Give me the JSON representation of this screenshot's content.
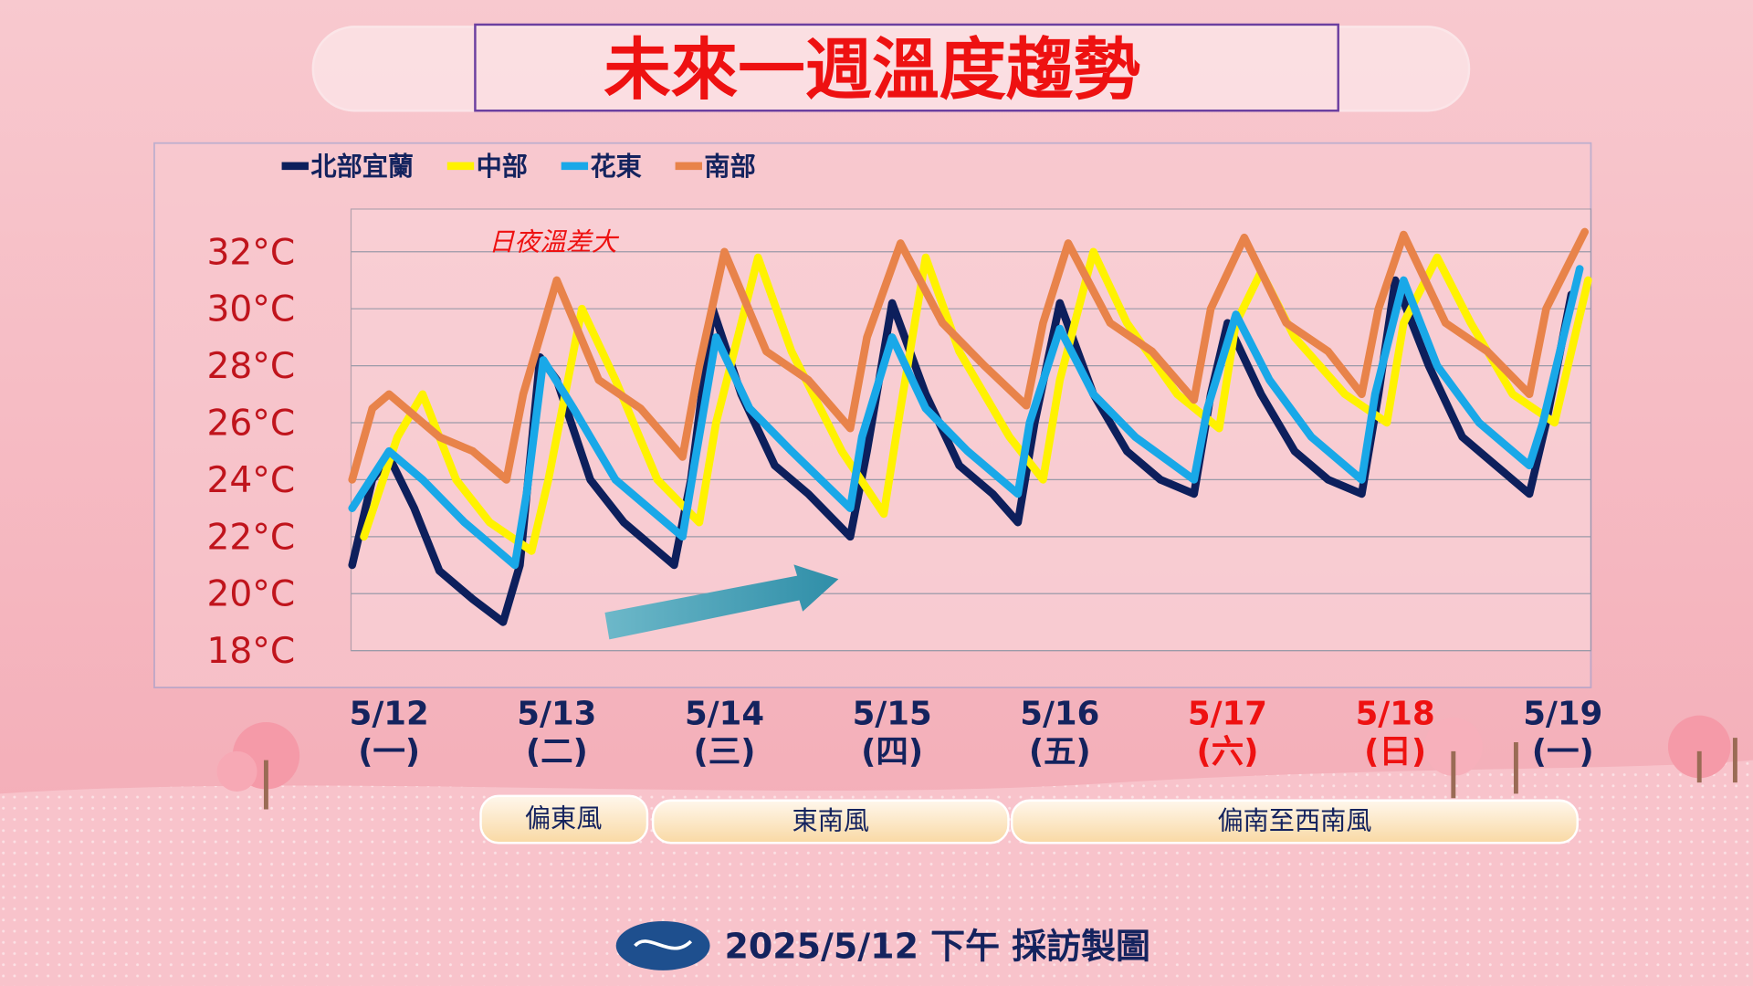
{
  "chart_data": {
    "type": "line",
    "title": "未來一週溫度趨勢",
    "annotation": "日夜溫差大",
    "xlim": [
      -0.227,
      7.167
    ],
    "ylim": [
      18,
      33.5
    ],
    "xticks": [
      {
        "value": 0,
        "label": "5/12"
      },
      {
        "value": 1,
        "label": "5/13"
      },
      {
        "value": 2,
        "label": "5/14"
      },
      {
        "value": 3,
        "label": "5/15"
      },
      {
        "value": 4,
        "label": "5/16"
      },
      {
        "value": 5,
        "label": "5/17"
      },
      {
        "value": 6,
        "label": "5/18"
      },
      {
        "value": 7,
        "label": "5/19"
      }
    ],
    "weekdays": [
      "(一)",
      "(二)",
      "(三)",
      "(四)",
      "(五)",
      "(六)",
      "(日)",
      "(一)"
    ],
    "xtick_colors": [
      "#14235e",
      "#14235e",
      "#14235e",
      "#14235e",
      "#14235e",
      "#ee1111",
      "#ee1111",
      "#14235e"
    ],
    "yticks": [
      {
        "value": 18,
        "label": "18°C"
      },
      {
        "value": 20,
        "label": "20°C"
      },
      {
        "value": 22,
        "label": "22°C"
      },
      {
        "value": 24,
        "label": "24°C"
      },
      {
        "value": 26,
        "label": "26°C"
      },
      {
        "value": 28,
        "label": "28°C"
      },
      {
        "value": 30,
        "label": "30°C"
      },
      {
        "value": 32,
        "label": "32°C"
      }
    ],
    "grid": true,
    "legend": "top-left",
    "series": [
      {
        "name": "北部宜蘭",
        "color": "#0d1f5c",
        "x": [
          -0.22,
          -0.1,
          0,
          0.15,
          0.3,
          0.5,
          0.68,
          0.78,
          0.9,
          1.0,
          1.2,
          1.4,
          1.7,
          1.8,
          1.93,
          2.1,
          2.3,
          2.5,
          2.75,
          2.85,
          3.0,
          3.2,
          3.4,
          3.6,
          3.75,
          3.85,
          4.0,
          4.2,
          4.4,
          4.6,
          4.8,
          4.9,
          5.0,
          5.2,
          5.4,
          5.6,
          5.8,
          5.9,
          6.0,
          6.2,
          6.4,
          6.6,
          6.8,
          6.9,
          7.05
        ],
        "values": [
          21,
          24,
          24.8,
          23,
          20.8,
          19.8,
          19,
          21,
          28.3,
          27.5,
          24,
          22.5,
          21,
          24,
          30,
          27,
          24.5,
          23.5,
          22,
          25,
          30.2,
          27,
          24.5,
          23.5,
          22.5,
          26,
          30.2,
          27,
          25,
          24,
          23.5,
          27,
          29.5,
          27,
          25,
          24,
          23.5,
          27,
          31,
          28,
          25.5,
          24.5,
          23.5,
          26,
          30.5
        ]
      },
      {
        "name": "中部",
        "color": "#fff200",
        "x": [
          -0.15,
          0.05,
          0.2,
          0.4,
          0.6,
          0.85,
          0.95,
          1.15,
          1.35,
          1.6,
          1.85,
          1.95,
          2.2,
          2.4,
          2.7,
          2.95,
          3.05,
          3.2,
          3.4,
          3.7,
          3.9,
          4.0,
          4.2,
          4.4,
          4.7,
          4.95,
          5.05,
          5.2,
          5.4,
          5.7,
          5.95,
          6.05,
          6.25,
          6.45,
          6.7,
          6.95,
          7.15
        ],
        "values": [
          22,
          25.5,
          27,
          24,
          22.5,
          21.5,
          24,
          30,
          27.5,
          24,
          22.5,
          26,
          31.8,
          28.5,
          25,
          22.8,
          26.5,
          31.8,
          28.5,
          25.5,
          24,
          27.5,
          32,
          29.5,
          27,
          25.8,
          29.5,
          31.3,
          29,
          27,
          26,
          29.5,
          31.8,
          29.5,
          27,
          26,
          31
        ]
      },
      {
        "name": "花東",
        "color": "#19a8e8",
        "x": [
          -0.22,
          0,
          0.2,
          0.45,
          0.75,
          0.82,
          0.92,
          1.1,
          1.35,
          1.75,
          1.82,
          1.95,
          2.15,
          2.4,
          2.75,
          2.82,
          3.0,
          3.2,
          3.45,
          3.75,
          3.82,
          4.0,
          4.2,
          4.45,
          4.8,
          4.88,
          5.05,
          5.25,
          5.5,
          5.8,
          5.88,
          6.05,
          6.25,
          6.5,
          6.8,
          6.88,
          7.1
        ],
        "values": [
          23,
          25,
          24,
          22.5,
          21,
          23.5,
          28.2,
          26.5,
          24,
          22,
          24.5,
          29,
          26.5,
          25,
          23,
          25.5,
          29,
          26.5,
          25,
          23.5,
          26,
          29.3,
          27,
          25.5,
          24,
          26.5,
          29.8,
          27.5,
          25.5,
          24,
          27,
          31,
          28,
          26,
          24.5,
          26,
          31.4
        ]
      },
      {
        "name": "南部",
        "color": "#e8834a",
        "x": [
          -0.22,
          -0.1,
          0,
          0.3,
          0.5,
          0.7,
          0.8,
          1.0,
          1.25,
          1.5,
          1.75,
          1.85,
          2.0,
          2.25,
          2.5,
          2.75,
          2.85,
          3.05,
          3.3,
          3.55,
          3.8,
          3.9,
          4.05,
          4.3,
          4.55,
          4.8,
          4.9,
          5.1,
          5.35,
          5.6,
          5.8,
          5.9,
          6.05,
          6.3,
          6.55,
          6.8,
          6.9,
          7.13
        ],
        "values": [
          24,
          26.5,
          27,
          25.5,
          25,
          24,
          27,
          31,
          27.5,
          26.5,
          24.8,
          28,
          32,
          28.5,
          27.5,
          25.8,
          29,
          32.3,
          29.5,
          28,
          26.6,
          29.5,
          32.3,
          29.5,
          28.5,
          26.8,
          30,
          32.5,
          29.5,
          28.5,
          27,
          30,
          32.6,
          29.5,
          28.5,
          27,
          30,
          32.7
        ]
      }
    ]
  },
  "winds": [
    "偏東風",
    "東南風",
    "偏南至西南風"
  ],
  "footer": "2025/5/12 下午 採訪製圖"
}
